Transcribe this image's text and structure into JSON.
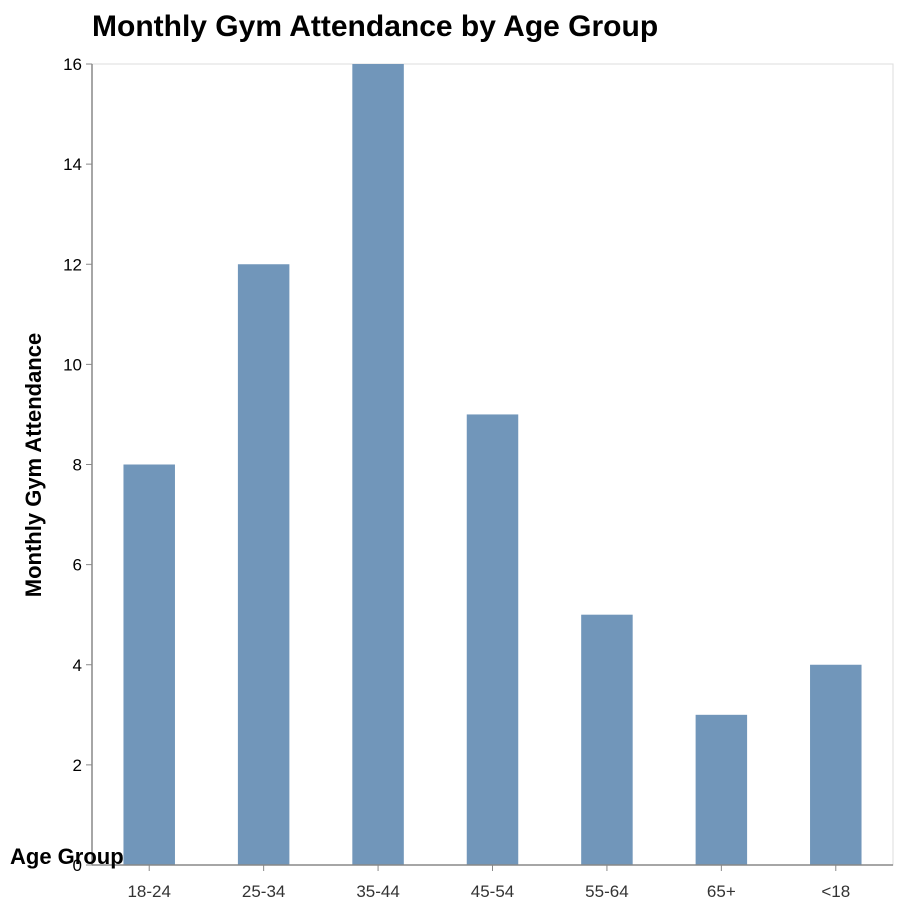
{
  "chart_data": {
    "type": "bar",
    "title": "Monthly Gym Attendance by Age Group",
    "xlabel": "Age Group",
    "ylabel": "Monthly Gym Attendance",
    "categories": [
      "18-24",
      "25-34",
      "35-44",
      "45-54",
      "55-64",
      "65+",
      "<18"
    ],
    "values": [
      8,
      12,
      16,
      9,
      5,
      3,
      4
    ],
    "ylim": [
      0,
      16
    ],
    "yticks": [
      0,
      2,
      4,
      6,
      8,
      10,
      12,
      14,
      16
    ],
    "grid": false,
    "legend": "none",
    "bar_color": "#7196ba"
  }
}
